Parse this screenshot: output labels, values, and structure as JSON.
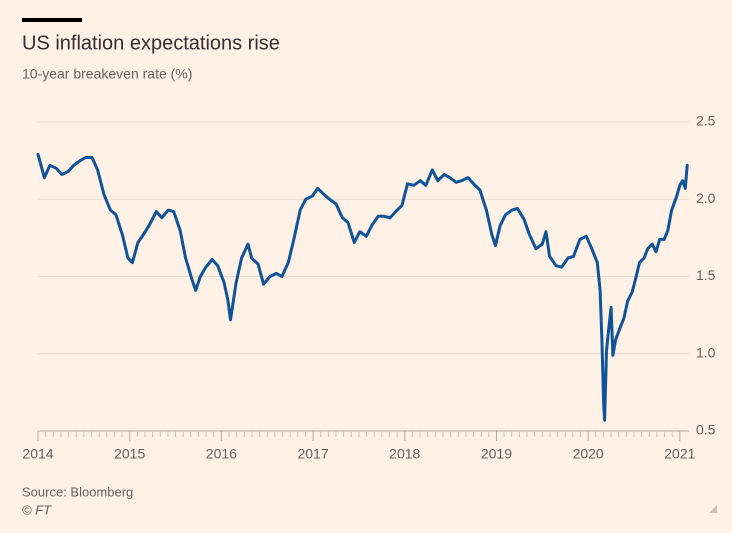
{
  "chart_data": {
    "type": "line",
    "title": "US inflation expectations rise",
    "subtitle": "10-year breakeven rate (%)",
    "source": "Source: Bloomberg",
    "copyright": "© FT",
    "color": "#0f5499",
    "grid": true,
    "xlim": [
      2014,
      2021.1
    ],
    "xticks": [
      2014,
      2015,
      2016,
      2017,
      2018,
      2019,
      2020,
      2021
    ],
    "ylim": [
      0.5,
      2.5
    ],
    "yticks": [
      {
        "value": 0.5,
        "label": "0.5"
      },
      {
        "value": 1,
        "label": "1.0"
      },
      {
        "value": 1.5,
        "label": "1.5"
      },
      {
        "value": 2,
        "label": "2.0"
      },
      {
        "value": 2.5,
        "label": "2.5"
      }
    ],
    "x": [
      2014.0,
      2014.07,
      2014.13,
      2014.2,
      2014.26,
      2014.33,
      2014.39,
      2014.46,
      2014.52,
      2014.59,
      2014.65,
      2014.72,
      2014.79,
      2014.85,
      2014.92,
      2014.98,
      2015.03,
      2015.09,
      2015.16,
      2015.22,
      2015.29,
      2015.35,
      2015.42,
      2015.48,
      2015.55,
      2015.61,
      2015.68,
      2015.72,
      2015.77,
      2015.83,
      2015.9,
      2015.96,
      2016.03,
      2016.07,
      2016.1,
      2016.16,
      2016.22,
      2016.29,
      2016.33,
      2016.4,
      2016.46,
      2016.53,
      2016.6,
      2016.66,
      2016.73,
      2016.79,
      2016.86,
      2016.92,
      2016.99,
      2017.05,
      2017.12,
      2017.18,
      2017.25,
      2017.32,
      2017.38,
      2017.45,
      2017.51,
      2017.58,
      2017.64,
      2017.71,
      2017.77,
      2017.84,
      2017.9,
      2017.97,
      2018.03,
      2018.1,
      2018.17,
      2018.23,
      2018.3,
      2018.36,
      2018.43,
      2018.49,
      2018.56,
      2018.62,
      2018.69,
      2018.75,
      2018.82,
      2018.89,
      2018.95,
      2018.99,
      2019.04,
      2019.1,
      2019.17,
      2019.23,
      2019.3,
      2019.36,
      2019.43,
      2019.5,
      2019.54,
      2019.58,
      2019.65,
      2019.71,
      2019.78,
      2019.84,
      2019.91,
      2019.98,
      2020.04,
      2020.1,
      2020.13,
      2020.15,
      2020.17,
      2020.18,
      2020.2,
      2020.23,
      2020.25,
      2020.27,
      2020.3,
      2020.35,
      2020.39,
      2020.43,
      2020.48,
      2020.52,
      2020.56,
      2020.61,
      2020.65,
      2020.7,
      2020.74,
      2020.78,
      2020.83,
      2020.87,
      2020.91,
      2020.96,
      2021.0,
      2021.03,
      2021.06,
      2021.08
    ],
    "values": [
      2.29,
      2.14,
      2.22,
      2.2,
      2.16,
      2.18,
      2.22,
      2.25,
      2.27,
      2.27,
      2.19,
      2.03,
      1.93,
      1.9,
      1.77,
      1.62,
      1.59,
      1.72,
      1.78,
      1.84,
      1.92,
      1.88,
      1.93,
      1.92,
      1.8,
      1.62,
      1.48,
      1.41,
      1.5,
      1.56,
      1.61,
      1.57,
      1.46,
      1.35,
      1.22,
      1.46,
      1.62,
      1.71,
      1.62,
      1.58,
      1.45,
      1.5,
      1.52,
      1.5,
      1.59,
      1.74,
      1.93,
      2.0,
      2.02,
      2.07,
      2.03,
      2.0,
      1.97,
      1.88,
      1.85,
      1.72,
      1.79,
      1.76,
      1.83,
      1.89,
      1.89,
      1.88,
      1.92,
      1.96,
      2.1,
      2.09,
      2.12,
      2.09,
      2.19,
      2.12,
      2.16,
      2.14,
      2.11,
      2.12,
      2.14,
      2.1,
      2.06,
      1.93,
      1.77,
      1.7,
      1.83,
      1.9,
      1.93,
      1.94,
      1.87,
      1.77,
      1.68,
      1.71,
      1.79,
      1.63,
      1.57,
      1.56,
      1.62,
      1.63,
      1.74,
      1.76,
      1.68,
      1.59,
      1.41,
      1.09,
      0.67,
      0.57,
      1.02,
      1.19,
      1.3,
      0.99,
      1.09,
      1.17,
      1.23,
      1.34,
      1.4,
      1.49,
      1.59,
      1.62,
      1.68,
      1.71,
      1.66,
      1.74,
      1.74,
      1.8,
      1.93,
      2.01,
      2.09,
      2.12,
      2.07,
      2.22
    ]
  }
}
